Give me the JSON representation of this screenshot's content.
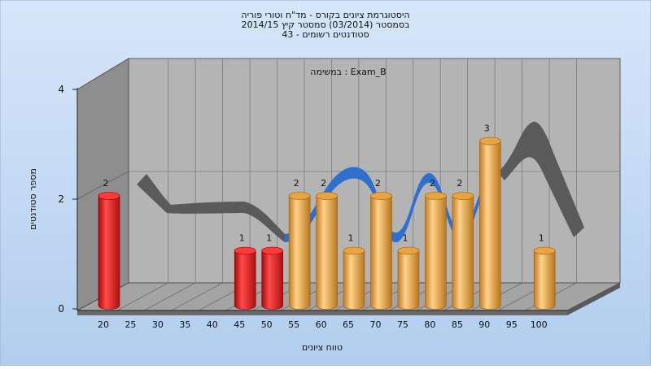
{
  "chart_data": {
    "type": "bar",
    "title_lines": [
      "היסטוגרמת ציונים בקורס - מד\"ח וטורי פוריה",
      "בסמסטר  (03/2014)  סמסטר קיץ 2014/15",
      "סטודנטים רשומים - 43"
    ],
    "subtitle": "במשימה : Exam_B",
    "xlabel": "טווח ציונים",
    "ylabel": "מספר סטודנטים",
    "ylim": [
      0,
      4
    ],
    "y_ticks": [
      "0",
      "2",
      "4"
    ],
    "x_tick_labels": [
      "20",
      "25",
      "30",
      "35",
      "40",
      "45",
      "50",
      "55",
      "60",
      "65",
      "70",
      "75",
      "80",
      "85",
      "90",
      "95",
      "100"
    ],
    "bars": [
      {
        "x": "20",
        "value": 2,
        "color": "red"
      },
      {
        "x": "45",
        "value": 1,
        "color": "red"
      },
      {
        "x": "50",
        "value": 1,
        "color": "red"
      },
      {
        "x": "55",
        "value": 2,
        "color": "orange"
      },
      {
        "x": "60",
        "value": 2,
        "color": "orange"
      },
      {
        "x": "65",
        "value": 1,
        "color": "orange"
      },
      {
        "x": "70",
        "value": 2,
        "color": "orange"
      },
      {
        "x": "75",
        "value": 1,
        "color": "orange"
      },
      {
        "x": "80",
        "value": 2,
        "color": "orange"
      },
      {
        "x": "85",
        "value": 2,
        "color": "orange"
      },
      {
        "x": "90",
        "value": 3,
        "color": "orange"
      },
      {
        "x": "100",
        "value": 1,
        "color": "orange"
      }
    ],
    "colors": {
      "red": "#e01818",
      "orange": "#f0aa48",
      "ribbon_gray": "#5a5a5a",
      "ribbon_blue": "#2f6fd0"
    },
    "grid": true
  }
}
